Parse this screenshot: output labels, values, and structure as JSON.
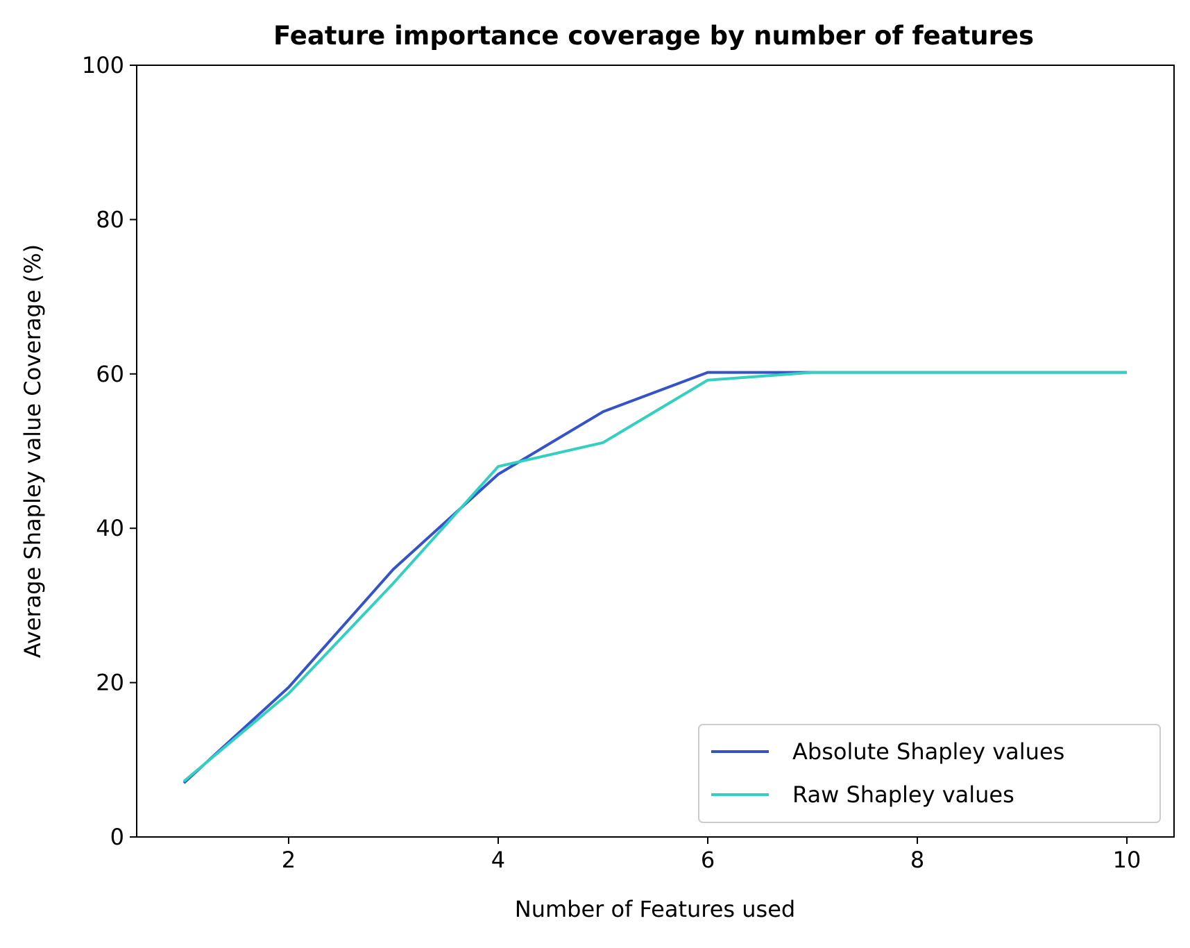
{
  "chart_data": {
    "type": "line",
    "title": "Feature importance coverage by number of features",
    "xlabel": "Number of Features used",
    "ylabel": "Average Shapley value Coverage (%)",
    "xlim": [
      0.55,
      10.45
    ],
    "ylim": [
      0,
      100
    ],
    "xticks": [
      2,
      4,
      6,
      8,
      10
    ],
    "yticks": [
      0,
      20,
      40,
      60,
      80,
      100
    ],
    "grid": false,
    "legend_position": "lower right",
    "x": [
      1,
      2,
      3,
      4,
      5,
      6,
      7,
      8,
      9,
      10
    ],
    "series": [
      {
        "name": "Absolute Shapley values",
        "color": "#3352cc",
        "values": [
          7.0,
          19.4,
          34.7,
          47.0,
          55.1,
          60.2,
          60.2,
          60.2,
          60.2,
          60.2
        ]
      },
      {
        "name": "Raw Shapley values",
        "color": "#33cfc0",
        "values": [
          7.2,
          18.6,
          32.9,
          48.0,
          51.1,
          59.2,
          60.2,
          60.2,
          60.2,
          60.2
        ]
      }
    ]
  }
}
